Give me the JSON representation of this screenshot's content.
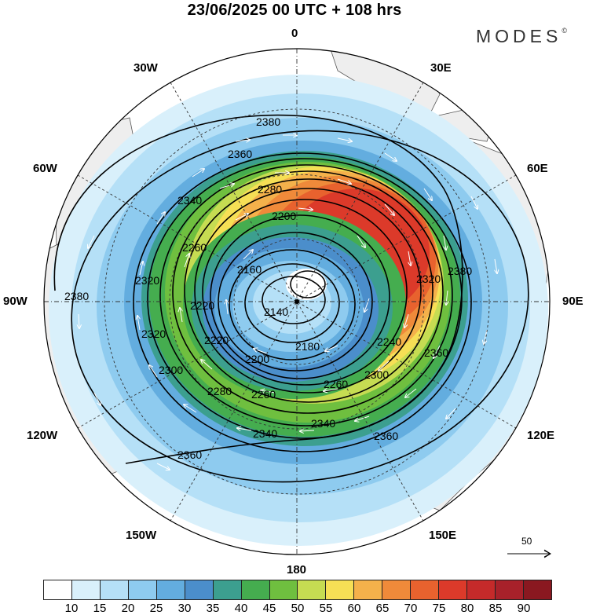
{
  "header": {
    "title": "23/06/2025  00 UTC  + 108 hrs",
    "brand": "MODES",
    "brand_mark": "©"
  },
  "map": {
    "projection": "north-polar-stereographic",
    "longitude_labels": {
      "top": "0",
      "top_right": "30E",
      "right_upper": "60E",
      "right": "90E",
      "right_lower": "120E",
      "bottom_right": "150E",
      "bottom": "180",
      "bottom_left": "150W",
      "left_lower": "120W",
      "left": "90W",
      "left_upper": "60W",
      "top_left": "30W"
    },
    "contour_labels": [
      "2380",
      "2360",
      "2340",
      "2280",
      "2200",
      "2260",
      "2320",
      "2160",
      "2140",
      "2180",
      "2220",
      "2240",
      "2300",
      "2260",
      "2200",
      "2220",
      "2280",
      "2260",
      "2300",
      "2320",
      "2380",
      "2340",
      "2340",
      "2360",
      "2360",
      "2360",
      "2320",
      "2380"
    ],
    "reference_vector": "50",
    "land_color": "#eeeeee",
    "contour_color": "#000000",
    "wind_arrow_color": "#ffffff"
  },
  "colorbar": {
    "levels": [
      "10",
      "15",
      "20",
      "25",
      "30",
      "35",
      "40",
      "45",
      "50",
      "55",
      "60",
      "65",
      "70",
      "75",
      "80",
      "85",
      "90"
    ],
    "colors": [
      "#ffffff",
      "#d9f0fb",
      "#b5e0f7",
      "#8ecbef",
      "#63addf",
      "#4b8ecb",
      "#3c9f8f",
      "#45ad4f",
      "#6fbf3f",
      "#c6dc52",
      "#f6df55",
      "#f4b14b",
      "#ef8a3a",
      "#e8622e",
      "#dc3a2a",
      "#c52a2a",
      "#a8212a",
      "#8a1820"
    ]
  }
}
